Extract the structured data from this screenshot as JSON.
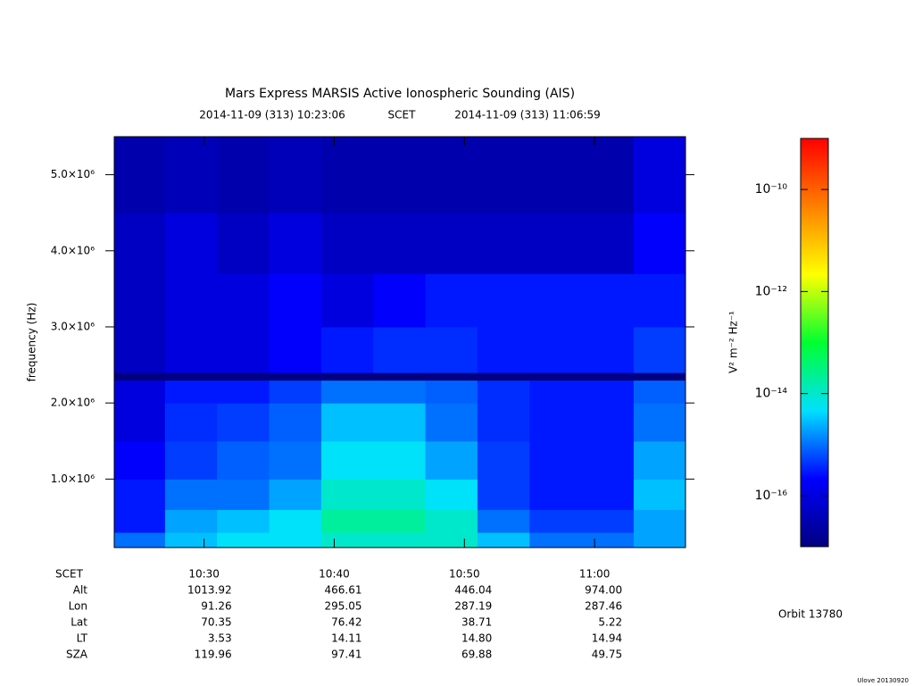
{
  "chart_data": {
    "type": "heatmap",
    "title": "Mars Express MARSIS Active Ionospheric Sounding (AIS)",
    "start_time": "2014-11-09 (313) 10:23:06",
    "time_label": "SCET",
    "end_time": "2014-11-09 (313) 11:06:59",
    "y_label": "frequency (Hz)",
    "xlim": [
      "10:23:06",
      "11:06:59"
    ],
    "xticks": [
      "10:30",
      "10:40",
      "10:50",
      "11:00"
    ],
    "ylim": [
      100000,
      5500000
    ],
    "yticks": [
      {
        "value": 1000000,
        "label": "1.0×10⁶"
      },
      {
        "value": 2000000,
        "label": "2.0×10⁶"
      },
      {
        "value": 3000000,
        "label": "3.0×10⁶"
      },
      {
        "value": 4000000,
        "label": "4.0×10⁶"
      },
      {
        "value": 5000000,
        "label": "5.0×10⁶"
      }
    ],
    "xbins": [
      "10:23:06",
      "10:27",
      "10:31",
      "10:35",
      "10:39",
      "10:43",
      "10:47",
      "10:51",
      "10:55",
      "10:59",
      "11:03",
      "11:06:59"
    ],
    "ybins": [
      100000,
      300000,
      600000,
      1000000,
      1500000,
      2000000,
      2300000,
      2400000,
      3000000,
      3700000,
      4500000,
      5500000
    ],
    "z": [
      [
        1e-15,
        3e-15,
        5e-15,
        5e-15,
        1e-14,
        1e-14,
        1e-14,
        3e-15,
        1e-15,
        1e-15,
        2e-15
      ],
      [
        3e-16,
        2e-15,
        3e-15,
        5e-15,
        2e-14,
        2e-14,
        1e-14,
        1e-15,
        5e-16,
        5e-16,
        2e-15
      ],
      [
        3e-16,
        1e-15,
        1e-15,
        2e-15,
        1e-14,
        1e-14,
        5e-15,
        5e-16,
        3e-16,
        3e-16,
        3e-15
      ],
      [
        2e-16,
        5e-16,
        8e-16,
        1e-15,
        5e-15,
        5e-15,
        2e-15,
        5e-16,
        3e-16,
        3e-16,
        2e-15
      ],
      [
        1e-16,
        4e-16,
        5e-16,
        8e-16,
        3e-15,
        3e-15,
        1e-15,
        4e-16,
        3e-16,
        3e-16,
        1e-15
      ],
      [
        1e-16,
        3e-16,
        3e-16,
        5e-16,
        1e-15,
        1e-15,
        8e-16,
        4e-16,
        3e-16,
        3e-16,
        8e-16
      ],
      [
        1e-17,
        1e-17,
        1e-17,
        1e-17,
        1e-17,
        1e-17,
        1e-17,
        1e-17,
        1e-17,
        1e-17,
        1e-17
      ],
      [
        5e-17,
        1e-16,
        1e-16,
        2e-16,
        3e-16,
        4e-16,
        4e-16,
        3e-16,
        3e-16,
        3e-16,
        5e-16
      ],
      [
        5e-17,
        1e-16,
        1e-16,
        2e-16,
        1e-16,
        2e-16,
        3e-16,
        3e-16,
        3e-16,
        3e-16,
        3e-16
      ],
      [
        5e-17,
        1e-16,
        5e-17,
        1e-16,
        5e-17,
        5e-17,
        5e-17,
        5e-17,
        5e-17,
        5e-17,
        2e-16
      ],
      [
        3e-17,
        4e-17,
        3e-17,
        4e-17,
        3e-17,
        3e-17,
        3e-17,
        3e-17,
        3e-17,
        3e-17,
        1e-16
      ]
    ],
    "zlim": [
      1e-17,
      1e-09
    ],
    "zscale": "log",
    "colormap": [
      "#000080",
      "#0000ff",
      "#00e0ff",
      "#00ff30",
      "#ffff00",
      "#ff8000",
      "#ff0000"
    ],
    "zticks": [
      {
        "value": 1e-16,
        "label": "10⁻¹⁶"
      },
      {
        "value": 1e-14,
        "label": "10⁻¹⁴"
      },
      {
        "value": 1e-12,
        "label": "10⁻¹²"
      },
      {
        "value": 1e-10,
        "label": "10⁻¹⁰"
      }
    ],
    "z_label": "V² m⁻² Hz⁻¹",
    "ephemeris": [
      {
        "label": "Alt",
        "values": [
          "1013.92",
          "466.61",
          "446.04",
          "974.00"
        ]
      },
      {
        "label": "Lon",
        "values": [
          "91.26",
          "295.05",
          "287.19",
          "287.46"
        ]
      },
      {
        "label": "Lat",
        "values": [
          "70.35",
          "76.42",
          "38.71",
          "5.22"
        ]
      },
      {
        "label": "LT",
        "values": [
          "3.53",
          "14.11",
          "14.80",
          "14.94"
        ]
      },
      {
        "label": "SZA",
        "values": [
          "119.96",
          "97.41",
          "69.88",
          "49.75"
        ]
      }
    ],
    "orbit": "Orbit 13780",
    "footer": "Ulove 20130920"
  }
}
